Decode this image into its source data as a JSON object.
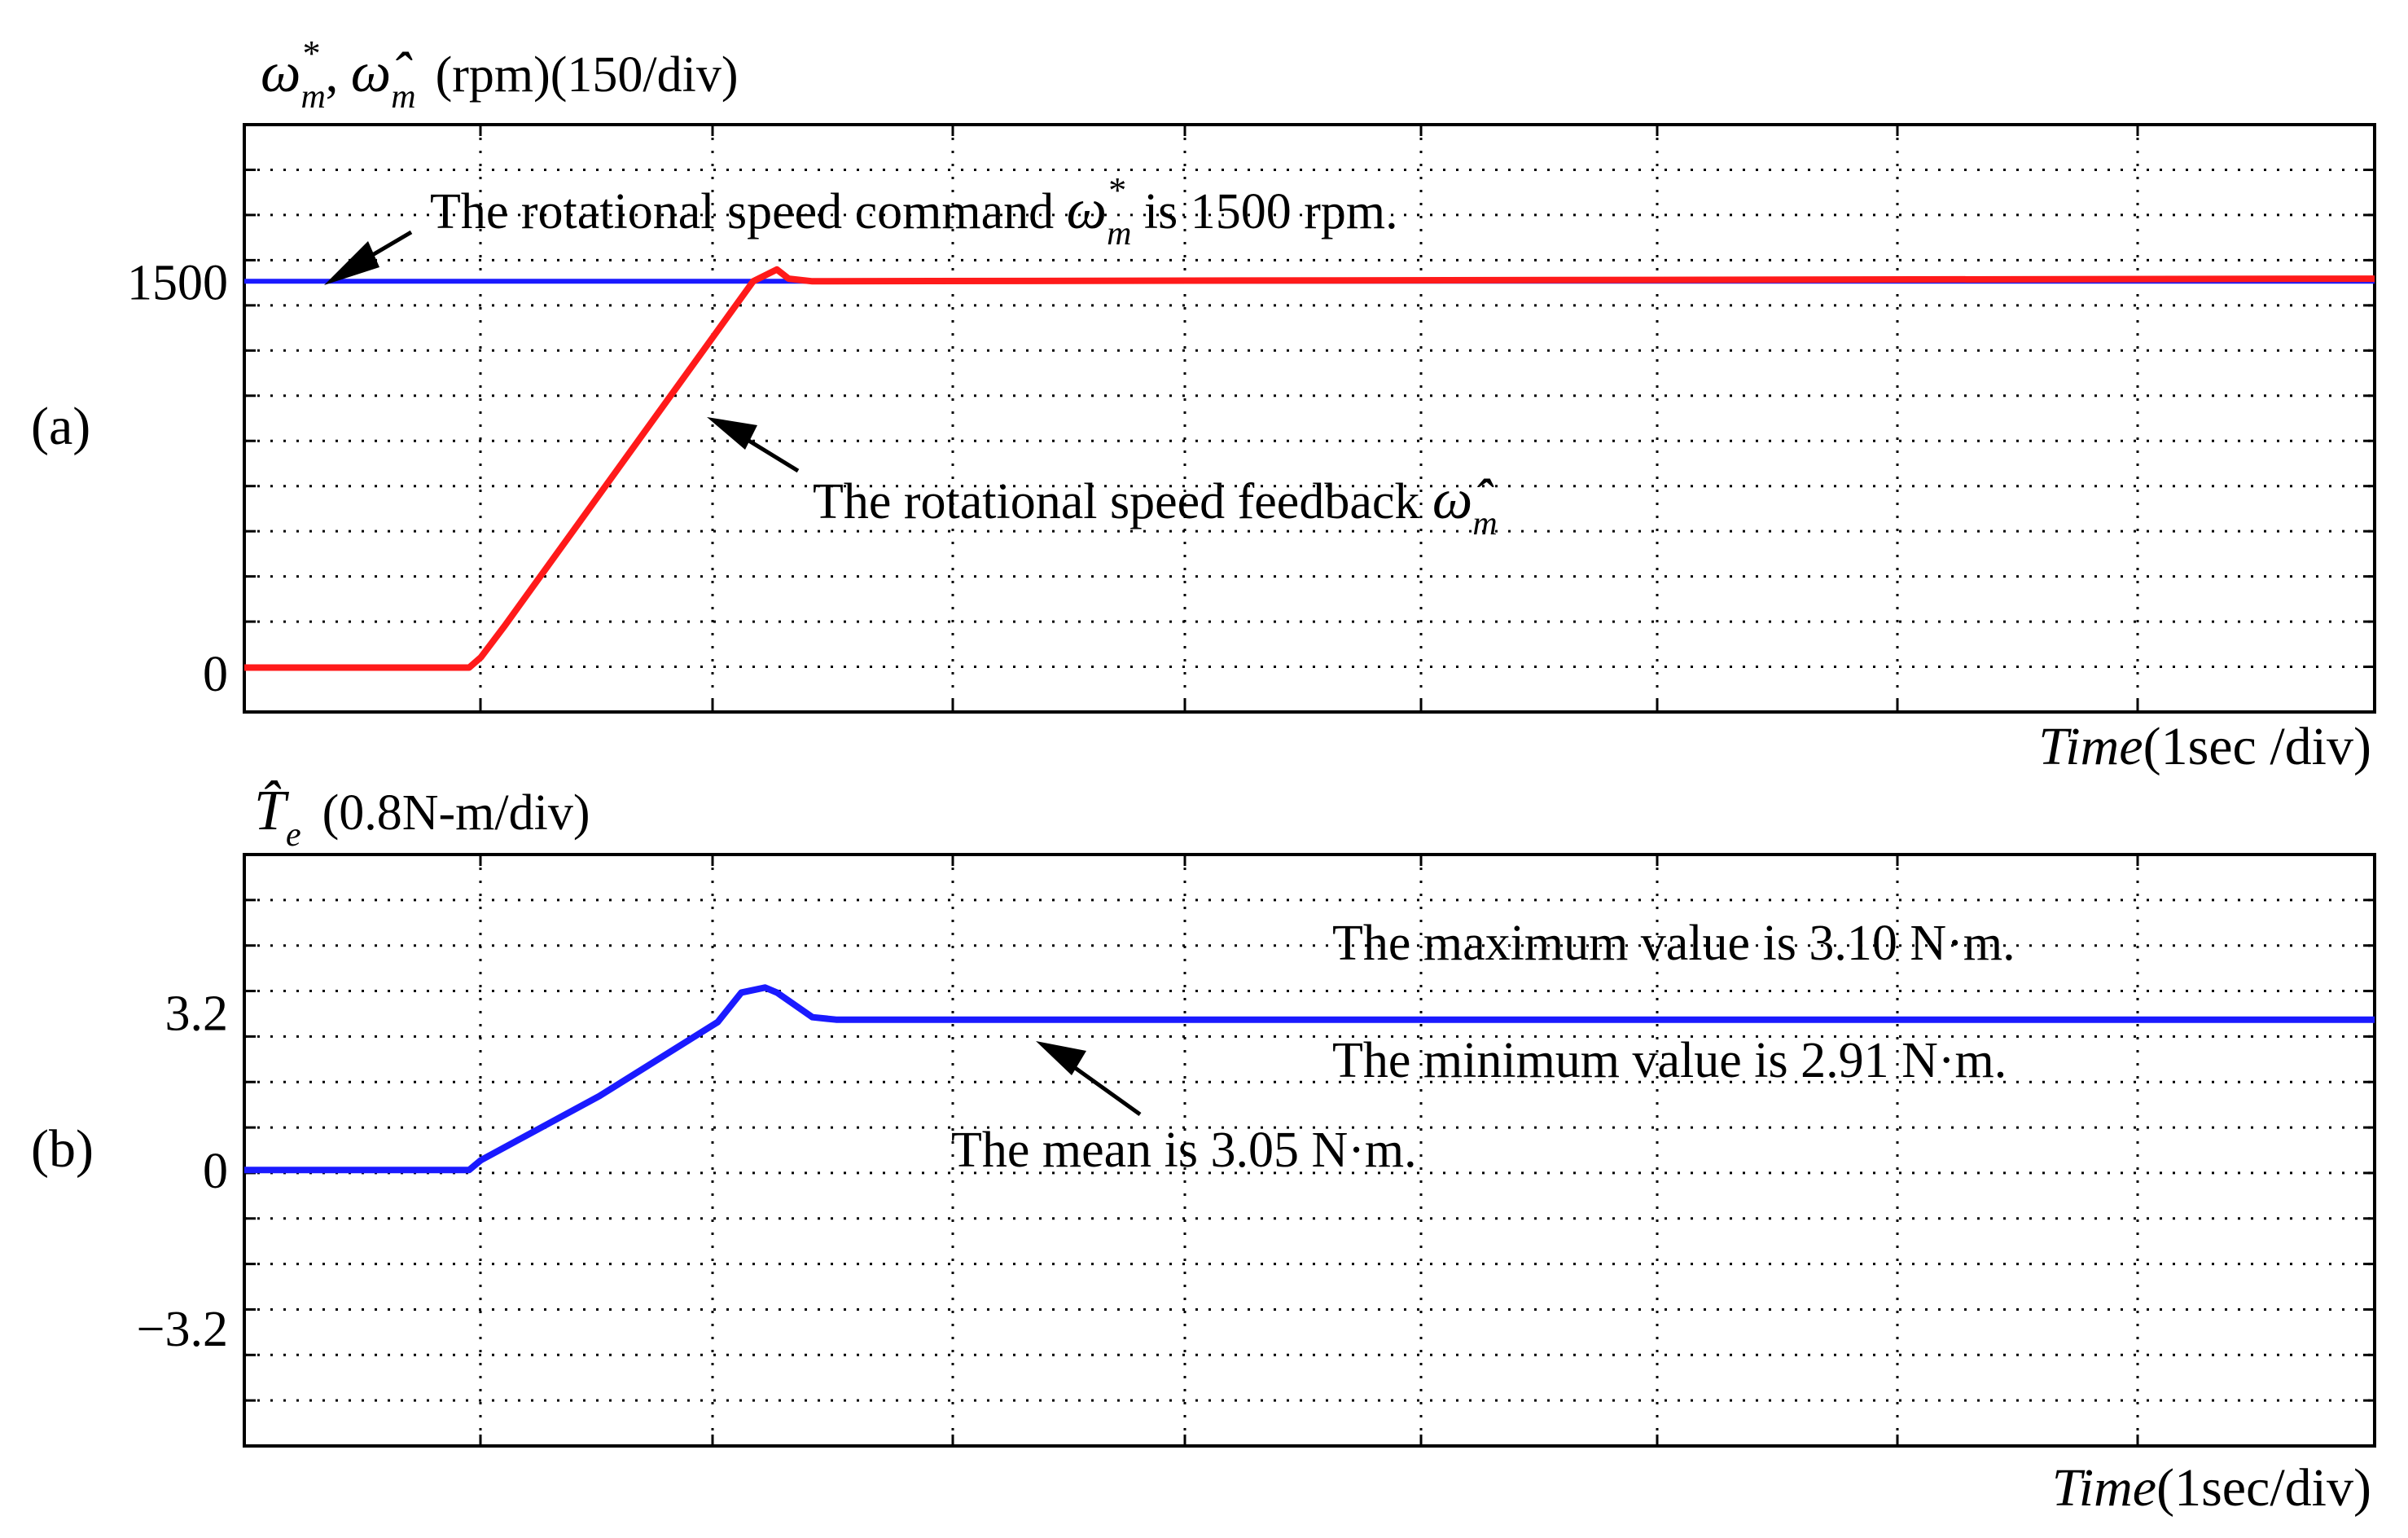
{
  "chart_data": [
    {
      "type": "line",
      "panel": "(a)",
      "ylabel_prefix": "ω",
      "ylabel_sup": "*",
      "ylabel_sub": "m",
      "ylabel_sep": ", ",
      "ylabel_hat": "ω̂",
      "ylabel_hat_sub": "m",
      "ylabel_unit": "(rpm)(150/div)",
      "xlabel_italic": "Time",
      "xlabel_unit": "(1sec /div)",
      "x_range": [
        0,
        9
      ],
      "y_range": [
        -150,
        2100
      ],
      "y_ticks": [
        {
          "value": 1500,
          "label": "1500"
        },
        {
          "value": 0,
          "label": "0"
        }
      ],
      "series": [
        {
          "name": "command",
          "color": "#1a1aff",
          "x": [
            0,
            9
          ],
          "y": [
            1500,
            1500
          ]
        },
        {
          "name": "feedback",
          "color": "#ff1a1a",
          "x": [
            0,
            0.05,
            0.95,
            1.0,
            1.1,
            2.15,
            2.25,
            2.3,
            2.4,
            9.0
          ],
          "y": [
            20,
            20,
            20,
            60,
            180,
            1500,
            1545,
            1510,
            1500,
            1510
          ]
        }
      ],
      "annotations": [
        {
          "text_pre": "The rotational speed command ",
          "sym": "ω",
          "sup": "*",
          "sub": "m",
          "text_post": " is 1500 rpm.",
          "arrow_to_x": 0.3,
          "arrow_to_y": 1500
        },
        {
          "text_pre": "The rotational speed feedback ",
          "sym": "ω̂",
          "sub": "m",
          "arrow_to_x": 1.95,
          "arrow_to_y": 1050
        }
      ]
    },
    {
      "type": "line",
      "panel": "(b)",
      "ylabel_sym": "T̂",
      "ylabel_sub": "e",
      "ylabel_unit": "(0.8N-m/div)",
      "xlabel_italic": "Time",
      "xlabel_unit": "(1sec/div)",
      "x_range": [
        0,
        9
      ],
      "y_range": [
        -5.6,
        6.4
      ],
      "y_ticks": [
        {
          "value": 3.2,
          "label": "3.2"
        },
        {
          "value": 0,
          "label": "0"
        },
        {
          "value": -3.2,
          "label": "−3.2"
        }
      ],
      "series": [
        {
          "name": "torque",
          "color": "#1a1aff",
          "x": [
            0,
            0.95,
            1.0,
            1.5,
            2.0,
            2.1,
            2.2,
            2.25,
            2.4,
            2.5,
            3.5,
            9.0
          ],
          "y": [
            0.0,
            0.0,
            0.2,
            1.5,
            3.0,
            3.6,
            3.7,
            3.6,
            3.1,
            3.05,
            3.05,
            3.05
          ]
        }
      ],
      "annotations": [
        {
          "text": "The maximum value is 3.10 N·m."
        },
        {
          "text": "The minimum value is 2.91 N·m."
        },
        {
          "text": "The mean is 3.05 N·m.",
          "arrow_to_x": 3.35,
          "arrow_to_y": 2.85
        }
      ]
    }
  ]
}
